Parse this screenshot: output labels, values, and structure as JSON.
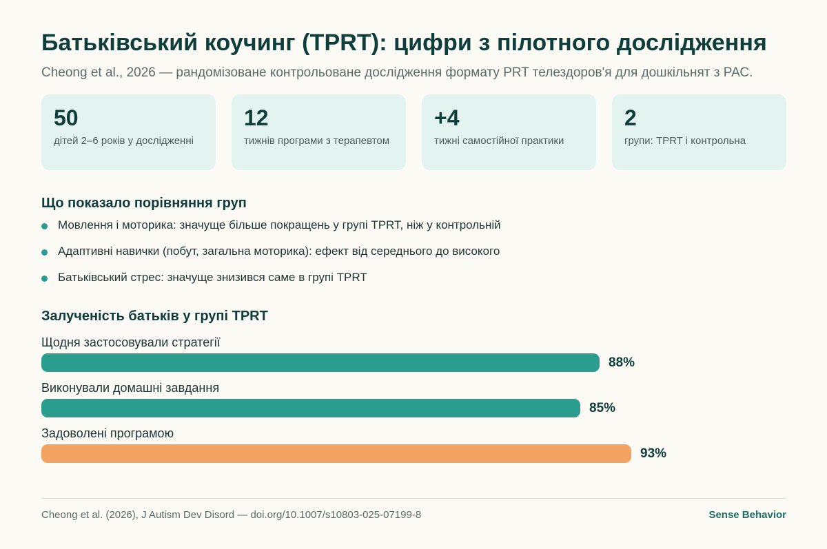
{
  "header": {
    "title": "Батьківський коучинг (TPRT): цифри з пілотного дослідження",
    "subtitle": "Cheong et al., 2026 — рандомізоване контрольоване дослідження формату PRT телездоров'я для дошкільнят з РАС."
  },
  "stats": [
    {
      "value": "50",
      "label": "дітей 2–6 років у дослідженні"
    },
    {
      "value": "12",
      "label": "тижнів програми з терапевтом"
    },
    {
      "value": "+4",
      "label": "тижні самостійної практики"
    },
    {
      "value": "2",
      "label": "групи: TPRT і контрольна"
    }
  ],
  "findings": {
    "heading": "Що показало порівняння груп",
    "items": [
      "Мовлення і моторика: значуще більше покращень у групі TPRT, ніж у контрольній",
      "Адаптивні навички (побут, загальна моторика): ефект від середнього до високого",
      "Батьківський стрес: значуще знизився саме в групі TPRT"
    ]
  },
  "engagement": {
    "heading": "Залученість батьків у групі TPRT",
    "bars": [
      {
        "label": "Щодня застосовували стратегії",
        "value": 88,
        "value_label": "88%",
        "color": "#2a9d8f"
      },
      {
        "label": "Виконували домашні завдання",
        "value": 85,
        "value_label": "85%",
        "color": "#2a9d8f"
      },
      {
        "label": "Задоволені програмою",
        "value": 93,
        "value_label": "93%",
        "color": "#f2a361"
      }
    ]
  },
  "footer": {
    "source": "Cheong et al. (2026), J Autism Dev Disord — doi.org/10.1007/s10803-025-07199-8",
    "brand": "Sense Behavior"
  },
  "colors": {
    "background": "#fbfaf5",
    "card": "#e2f3f0",
    "accent_teal": "#2a9d8f",
    "accent_orange": "#f2a361",
    "heading": "#0f3d3a"
  }
}
